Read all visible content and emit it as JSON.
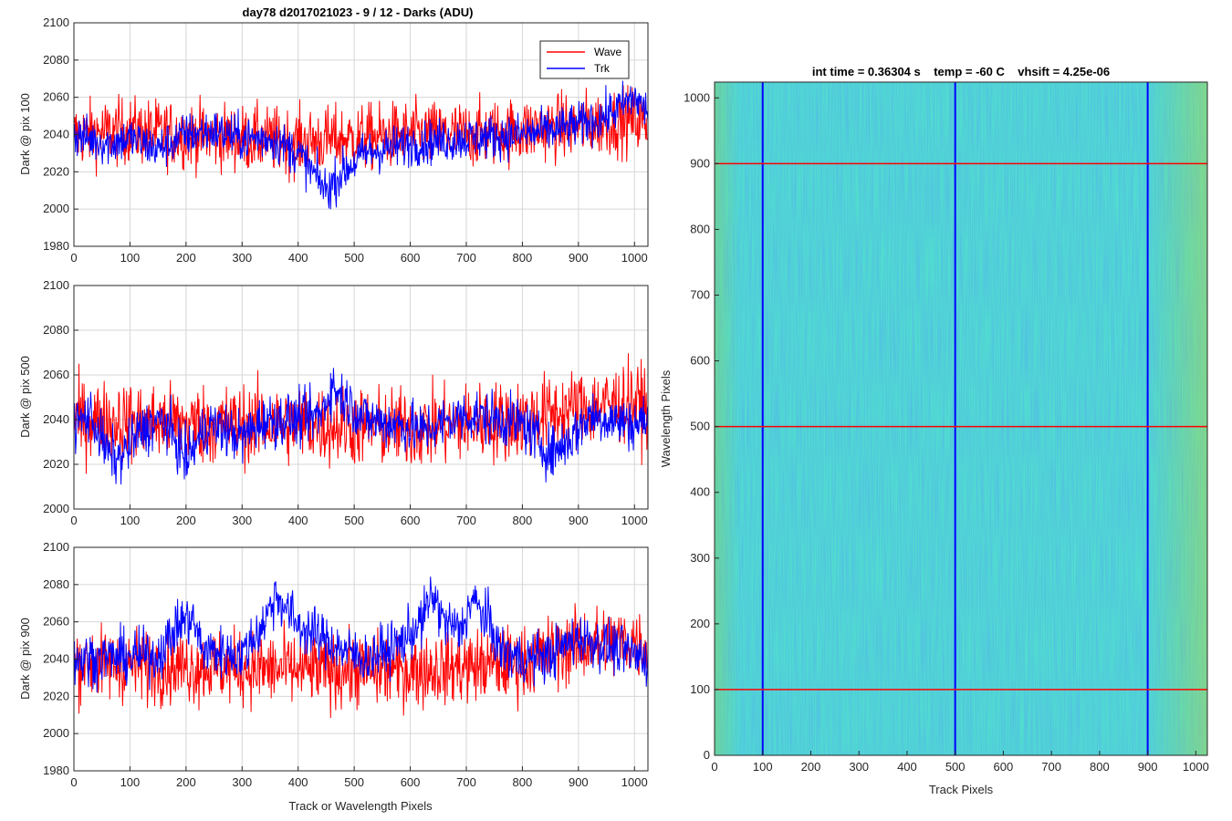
{
  "colors": {
    "wave": "#ff0000",
    "trk": "#0000ff",
    "grid": "#d6d6d6",
    "axis": "#262626"
  },
  "chart_data": [
    {
      "type": "line",
      "title": "day78 d2017021023 - 9 / 12 - Darks (ADU)",
      "ylabel": "Dark @ pix 100",
      "xlabel": "",
      "xlim": [
        0,
        1024
      ],
      "ylim": [
        1980,
        2100
      ],
      "xticks": [
        "0",
        "100",
        "200",
        "300",
        "400",
        "500",
        "600",
        "700",
        "800",
        "900",
        "1000"
      ],
      "yticks": [
        "1980",
        "2000",
        "2020",
        "2040",
        "2060",
        "2080",
        "2100"
      ],
      "legend": {
        "position": "top-right",
        "entries": [
          "Wave",
          "Trk"
        ]
      },
      "series": [
        {
          "name": "Wave",
          "color": "#ff0000",
          "anchors": [
            [
              0,
              2040
            ],
            [
              100,
              2042
            ],
            [
              200,
              2040
            ],
            [
              300,
              2038
            ],
            [
              400,
              2036
            ],
            [
              500,
              2038
            ],
            [
              600,
              2040
            ],
            [
              700,
              2040
            ],
            [
              800,
              2042
            ],
            [
              900,
              2045
            ],
            [
              1000,
              2048
            ],
            [
              1024,
              2046
            ]
          ],
          "noise": 9
        },
        {
          "name": "Trk",
          "color": "#0000ff",
          "anchors": [
            [
              0,
              2040
            ],
            [
              60,
              2035
            ],
            [
              100,
              2038
            ],
            [
              150,
              2032
            ],
            [
              200,
              2040
            ],
            [
              250,
              2042
            ],
            [
              300,
              2038
            ],
            [
              350,
              2038
            ],
            [
              400,
              2030
            ],
            [
              450,
              2010
            ],
            [
              480,
              2020
            ],
            [
              520,
              2030
            ],
            [
              600,
              2035
            ],
            [
              700,
              2038
            ],
            [
              800,
              2040
            ],
            [
              850,
              2042
            ],
            [
              900,
              2045
            ],
            [
              950,
              2050
            ],
            [
              1000,
              2060
            ],
            [
              1024,
              2052
            ]
          ],
          "noise": 6
        }
      ]
    },
    {
      "type": "line",
      "title": "",
      "ylabel": "Dark @ pix 500",
      "xlabel": "",
      "xlim": [
        0,
        1024
      ],
      "ylim": [
        2000,
        2100
      ],
      "xticks": [
        "0",
        "100",
        "200",
        "300",
        "400",
        "500",
        "600",
        "700",
        "800",
        "900",
        "1000"
      ],
      "yticks": [
        "2000",
        "2020",
        "2040",
        "2060",
        "2080",
        "2100"
      ],
      "series": [
        {
          "name": "Wave",
          "color": "#ff0000",
          "anchors": [
            [
              0,
              2040
            ],
            [
              200,
              2038
            ],
            [
              400,
              2038
            ],
            [
              600,
              2036
            ],
            [
              800,
              2040
            ],
            [
              900,
              2045
            ],
            [
              1000,
              2048
            ],
            [
              1024,
              2045
            ]
          ],
          "noise": 9
        },
        {
          "name": "Trk",
          "color": "#0000ff",
          "anchors": [
            [
              0,
              2038
            ],
            [
              30,
              2042
            ],
            [
              60,
              2025
            ],
            [
              80,
              2022
            ],
            [
              120,
              2035
            ],
            [
              160,
              2040
            ],
            [
              200,
              2022
            ],
            [
              240,
              2038
            ],
            [
              300,
              2032
            ],
            [
              340,
              2040
            ],
            [
              400,
              2040
            ],
            [
              440,
              2042
            ],
            [
              460,
              2055
            ],
            [
              480,
              2050
            ],
            [
              520,
              2040
            ],
            [
              580,
              2038
            ],
            [
              620,
              2035
            ],
            [
              700,
              2042
            ],
            [
              760,
              2040
            ],
            [
              800,
              2038
            ],
            [
              850,
              2025
            ],
            [
              880,
              2030
            ],
            [
              920,
              2042
            ],
            [
              960,
              2040
            ],
            [
              1000,
              2038
            ],
            [
              1024,
              2040
            ]
          ],
          "noise": 6
        }
      ]
    },
    {
      "type": "line",
      "title": "",
      "ylabel": "Dark @ pix 900",
      "xlabel": "Track or Wavelength Pixels",
      "xlim": [
        0,
        1024
      ],
      "ylim": [
        1980,
        2100
      ],
      "xticks": [
        "0",
        "100",
        "200",
        "300",
        "400",
        "500",
        "600",
        "700",
        "800",
        "900",
        "1000"
      ],
      "yticks": [
        "1980",
        "2000",
        "2020",
        "2040",
        "2060",
        "2080",
        "2100"
      ],
      "series": [
        {
          "name": "Wave",
          "color": "#ff0000",
          "anchors": [
            [
              0,
              2038
            ],
            [
              200,
              2036
            ],
            [
              400,
              2034
            ],
            [
              600,
              2034
            ],
            [
              800,
              2038
            ],
            [
              900,
              2048
            ],
            [
              1000,
              2050
            ],
            [
              1024,
              2046
            ]
          ],
          "noise": 10
        },
        {
          "name": "Trk",
          "color": "#0000ff",
          "anchors": [
            [
              0,
              2040
            ],
            [
              150,
              2042
            ],
            [
              190,
              2060
            ],
            [
              210,
              2062
            ],
            [
              230,
              2045
            ],
            [
              300,
              2042
            ],
            [
              340,
              2060
            ],
            [
              360,
              2075
            ],
            [
              400,
              2058
            ],
            [
              450,
              2050
            ],
            [
              480,
              2045
            ],
            [
              520,
              2040
            ],
            [
              580,
              2048
            ],
            [
              620,
              2060
            ],
            [
              640,
              2075
            ],
            [
              660,
              2060
            ],
            [
              690,
              2055
            ],
            [
              710,
              2072
            ],
            [
              740,
              2060
            ],
            [
              760,
              2045
            ],
            [
              800,
              2040
            ],
            [
              850,
              2042
            ],
            [
              900,
              2052
            ],
            [
              940,
              2048
            ],
            [
              1000,
              2042
            ],
            [
              1024,
              2040
            ]
          ],
          "noise": 7
        }
      ]
    },
    {
      "type": "heatmap",
      "title": "int time = 0.36304 s    temp = -60 C    vhsift = 4.25e-06",
      "xlabel": "Track Pixels",
      "ylabel": "Wavelength Pixels",
      "xlim": [
        0,
        1024
      ],
      "ylim": [
        0,
        1024
      ],
      "xticks": [
        "0",
        "100",
        "200",
        "300",
        "400",
        "500",
        "600",
        "700",
        "800",
        "900",
        "1000"
      ],
      "yticks": [
        "0",
        "100",
        "200",
        "300",
        "400",
        "500",
        "600",
        "700",
        "800",
        "900",
        "1000"
      ],
      "colormap": "parula",
      "vertical_markers": {
        "values": [
          100,
          500,
          900
        ],
        "color": "#0000ff"
      },
      "horizontal_markers": {
        "values": [
          100,
          500,
          900
        ],
        "color": "#ff0000"
      }
    }
  ]
}
